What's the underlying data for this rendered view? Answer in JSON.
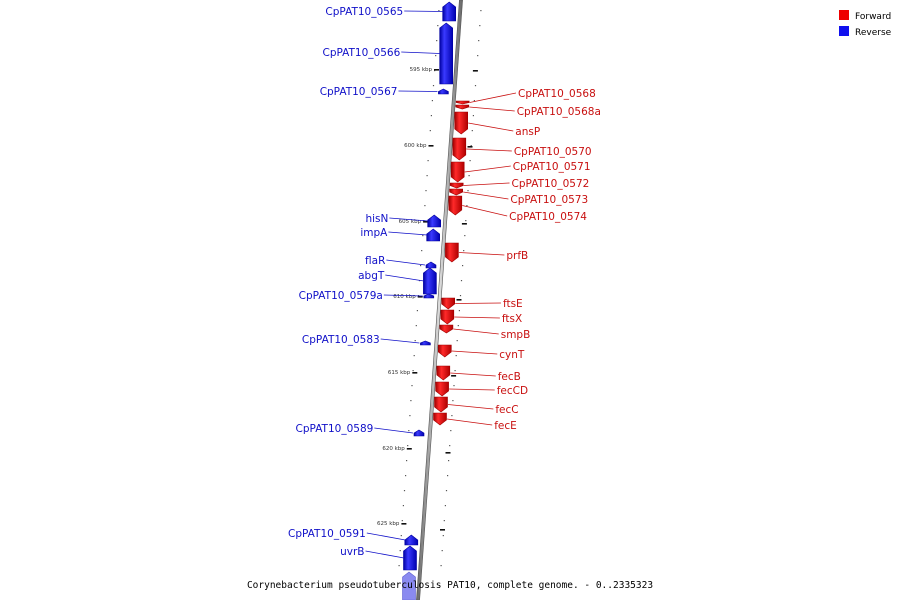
{
  "caption": "Corynebacterium pseudotuberculosis PAT10, complete genome. - 0..2335323",
  "legend": [
    {
      "label": "Forward",
      "color": "#ee0000"
    },
    {
      "label": "Reverse",
      "color": "#1010ee"
    }
  ],
  "kbp_ticks": [
    "595 kbp",
    "600 kbp",
    "605 kbp",
    "610 kbp",
    "615 kbp",
    "620 kbp",
    "625 kbp"
  ],
  "reverse_genes": [
    "CpPAT10_0565",
    "CpPAT10_0566",
    "CpPAT10_0567",
    "hisN",
    "impA",
    "flaR",
    "abgT",
    "CpPAT10_0579a",
    "CpPAT10_0583",
    "CpPAT10_0589",
    "CpPAT10_0591",
    "uvrB"
  ],
  "forward_genes": [
    "CpPAT10_0568",
    "CpPAT10_0568a",
    "ansP",
    "CpPAT10_0570",
    "CpPAT10_0571",
    "CpPAT10_0572",
    "CpPAT10_0573",
    "CpPAT10_0574",
    "prfB",
    "ftsE",
    "ftsX",
    "smpB",
    "cynT",
    "fecB",
    "fecCD",
    "fecC",
    "fecE"
  ]
}
